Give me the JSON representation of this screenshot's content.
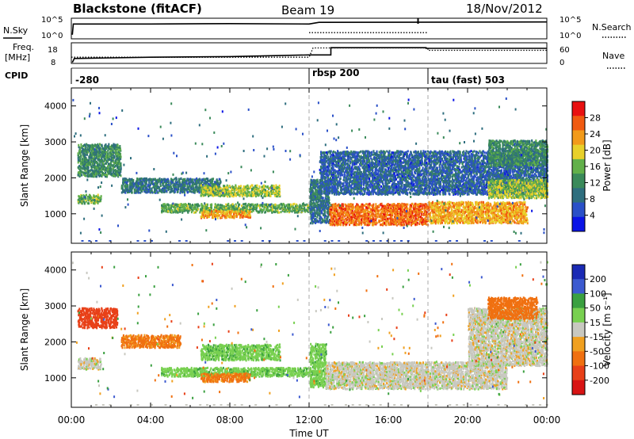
{
  "header": {
    "radar": "Blackstone (fitACF)",
    "beam": "Beam 19",
    "date": "18/Nov/2012"
  },
  "noise_panel": {
    "left_label": "N.Sky",
    "right_label": "N.Search",
    "left_ticks": [
      "10^5",
      "10^0"
    ],
    "right_ticks": [
      "10^5",
      "10^0"
    ]
  },
  "freq_panel": {
    "left_label": "Freq.",
    "left_unit": "[MHz]",
    "right_label": "Nave",
    "left_ticks": [
      "18",
      "8"
    ],
    "right_ticks": [
      "60",
      "0"
    ]
  },
  "cpid": {
    "label": "CPID",
    "segments": [
      "-280",
      "rbsp 200",
      "tau (fast) 503"
    ]
  },
  "power_panel": {
    "ylabel": "Slant Range [km]",
    "colorbar_label": "Power [dB]",
    "colorbar_ticks": [
      "28",
      "24",
      "20",
      "16",
      "12",
      "8",
      "4"
    ]
  },
  "velocity_panel": {
    "ylabel": "Slant Range [km]",
    "colorbar_label": "Velocity [m s⁻¹]",
    "colorbar_ticks": [
      "200",
      "100",
      "50",
      "15",
      "-15",
      "-50",
      "-100",
      "-200"
    ]
  },
  "xaxis": {
    "label": "Time UT"
  },
  "colors": {
    "power_scale": [
      "#0a14e6",
      "#2a50c8",
      "#2e6e7e",
      "#3a8a5a",
      "#62b04a",
      "#e8d02a",
      "#f29a1a",
      "#f05a10",
      "#e81010"
    ],
    "velocity_scale": [
      "#1a2ab4",
      "#3c5ad0",
      "#3aa040",
      "#78d050",
      "#c8c8c0",
      "#f0a020",
      "#f07010",
      "#e84018",
      "#d81414"
    ]
  },
  "chart_data": [
    {
      "type": "line",
      "name": "noise",
      "x_range_hours": [
        0,
        24
      ],
      "series": [
        {
          "name": "N.Sky",
          "style": "solid",
          "points": [
            [
              0.05,
              1
            ],
            [
              0.1,
              3.6
            ],
            [
              4,
              3.6
            ],
            [
              8,
              3.7
            ],
            [
              12,
              3.6
            ],
            [
              12.5,
              4.0
            ],
            [
              24,
              4.1
            ]
          ]
        },
        {
          "name": "N.Search",
          "style": "dotted",
          "points": [
            [
              12,
              1.5
            ],
            [
              18,
              1.5
            ]
          ]
        }
      ]
    },
    {
      "type": "line",
      "name": "frequency",
      "x_range_hours": [
        0,
        24
      ],
      "series": [
        {
          "name": "Freq",
          "unit": "MHz",
          "style": "solid",
          "points": [
            [
              0.05,
              8.5
            ],
            [
              0.15,
              10.4
            ],
            [
              4,
              11.0
            ],
            [
              8,
              11.3
            ],
            [
              12,
              12.1
            ],
            [
              13.1,
              12.1
            ],
            [
              13.1,
              15.6
            ],
            [
              17.9,
              15.6
            ],
            [
              17.9,
              15.3
            ],
            [
              24,
              15.3
            ]
          ]
        },
        {
          "name": "Nave",
          "unit": "",
          "style": "dotted",
          "points": [
            [
              0,
              18
            ],
            [
              12,
              18
            ],
            [
              12.2,
              45
            ],
            [
              18,
              45
            ],
            [
              18,
              38
            ],
            [
              24,
              38
            ]
          ]
        }
      ]
    },
    {
      "type": "heatmap",
      "name": "power",
      "xlabel": "Time UT",
      "ylabel": "Slant Range [km]",
      "xlim_hours": [
        0,
        24
      ],
      "ylim": [
        180,
        4500
      ],
      "xticks": [
        "00:00",
        "04:00",
        "08:00",
        "12:00",
        "16:00",
        "20:00",
        "00:00"
      ],
      "yticks": [
        1000,
        2000,
        3000,
        4000
      ],
      "colorbar_unit": "dB",
      "colorbar_range": [
        0,
        30
      ],
      "bands": [
        {
          "t": [
            0.3,
            1.5
          ],
          "range": [
            1250,
            1500
          ],
          "value": 14
        },
        {
          "t": [
            0.3,
            2.5
          ],
          "range": [
            2000,
            2900
          ],
          "value": 11
        },
        {
          "t": [
            2.5,
            7.5
          ],
          "range": [
            1550,
            1950
          ],
          "value": 9
        },
        {
          "t": [
            6.5,
            10.5
          ],
          "range": [
            1450,
            1750
          ],
          "value": 16
        },
        {
          "t": [
            4.5,
            12
          ],
          "range": [
            1000,
            1250
          ],
          "value": 14
        },
        {
          "t": [
            6.5,
            9
          ],
          "range": [
            850,
            1050
          ],
          "value": 22
        },
        {
          "t": [
            12,
            13
          ],
          "range": [
            700,
            1900
          ],
          "value": 9
        },
        {
          "t": [
            12.5,
            24
          ],
          "range": [
            1500,
            2700
          ],
          "value": 7
        },
        {
          "t": [
            13,
            18
          ],
          "range": [
            650,
            1250
          ],
          "value": 24
        },
        {
          "t": [
            18,
            23
          ],
          "range": [
            700,
            1300
          ],
          "value": 21
        },
        {
          "t": [
            21,
            24
          ],
          "range": [
            1400,
            1900
          ],
          "value": 16
        },
        {
          "t": [
            21,
            24
          ],
          "range": [
            2300,
            3000
          ],
          "value": 11
        }
      ]
    },
    {
      "type": "heatmap",
      "name": "velocity",
      "xlabel": "Time UT",
      "ylabel": "Slant Range [km]",
      "xlim_hours": [
        0,
        24
      ],
      "ylim": [
        180,
        4500
      ],
      "xticks": [
        "00:00",
        "04:00",
        "08:00",
        "12:00",
        "16:00",
        "20:00",
        "00:00"
      ],
      "yticks": [
        1000,
        2000,
        3000,
        4000
      ],
      "colorbar_unit": "m s-1",
      "colorbar_range": [
        -200,
        200
      ],
      "bands": [
        {
          "t": [
            0.3,
            1.5
          ],
          "range": [
            1200,
            1500
          ],
          "value": 0
        },
        {
          "t": [
            0.3,
            2.3
          ],
          "range": [
            2350,
            2900
          ],
          "value": -180
        },
        {
          "t": [
            2.5,
            5.5
          ],
          "range": [
            1800,
            2150
          ],
          "value": -60
        },
        {
          "t": [
            6.5,
            10.5
          ],
          "range": [
            1450,
            1900
          ],
          "value": 35
        },
        {
          "t": [
            4.5,
            12
          ],
          "range": [
            1000,
            1250
          ],
          "value": 35
        },
        {
          "t": [
            6.5,
            9
          ],
          "range": [
            850,
            1100
          ],
          "value": -60
        },
        {
          "t": [
            12,
            12.8
          ],
          "range": [
            700,
            1900
          ],
          "value": 35
        },
        {
          "t": [
            12.8,
            22
          ],
          "range": [
            650,
            1400
          ],
          "value": 0
        },
        {
          "t": [
            20,
            24
          ],
          "range": [
            1300,
            2900
          ],
          "value": 0
        },
        {
          "t": [
            21,
            23.5
          ],
          "range": [
            2600,
            3200
          ],
          "value": -70
        }
      ]
    }
  ]
}
